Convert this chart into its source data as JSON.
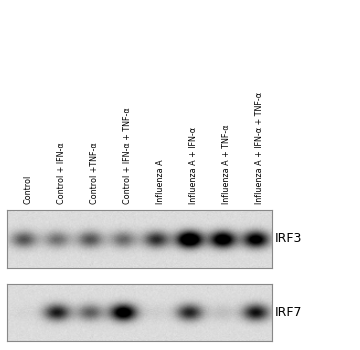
{
  "labels": [
    "Control",
    "Control + IFN-α",
    "Control +TNF-α",
    "Control + IFN-α + TNF-α",
    "Influenza A",
    "Influenza A + IFN-α",
    "Influenza A + TNF-α",
    "Influenza A + IFN-α + TNF-α"
  ],
  "irf3_bands": [
    0.38,
    0.3,
    0.38,
    0.32,
    0.5,
    0.92,
    0.8,
    0.72
  ],
  "irf7_bands": [
    0.02,
    0.55,
    0.35,
    0.78,
    0.04,
    0.52,
    0.08,
    0.58
  ],
  "label_irf3": "IRF3",
  "label_irf7": "IRF7",
  "fig_width": 3.6,
  "fig_height": 3.5,
  "panel_bg_light": 0.88,
  "panel_bg_dark": 0.8,
  "n_lanes": 8,
  "label_fontsize": 5.8,
  "band_label_fontsize": 9
}
